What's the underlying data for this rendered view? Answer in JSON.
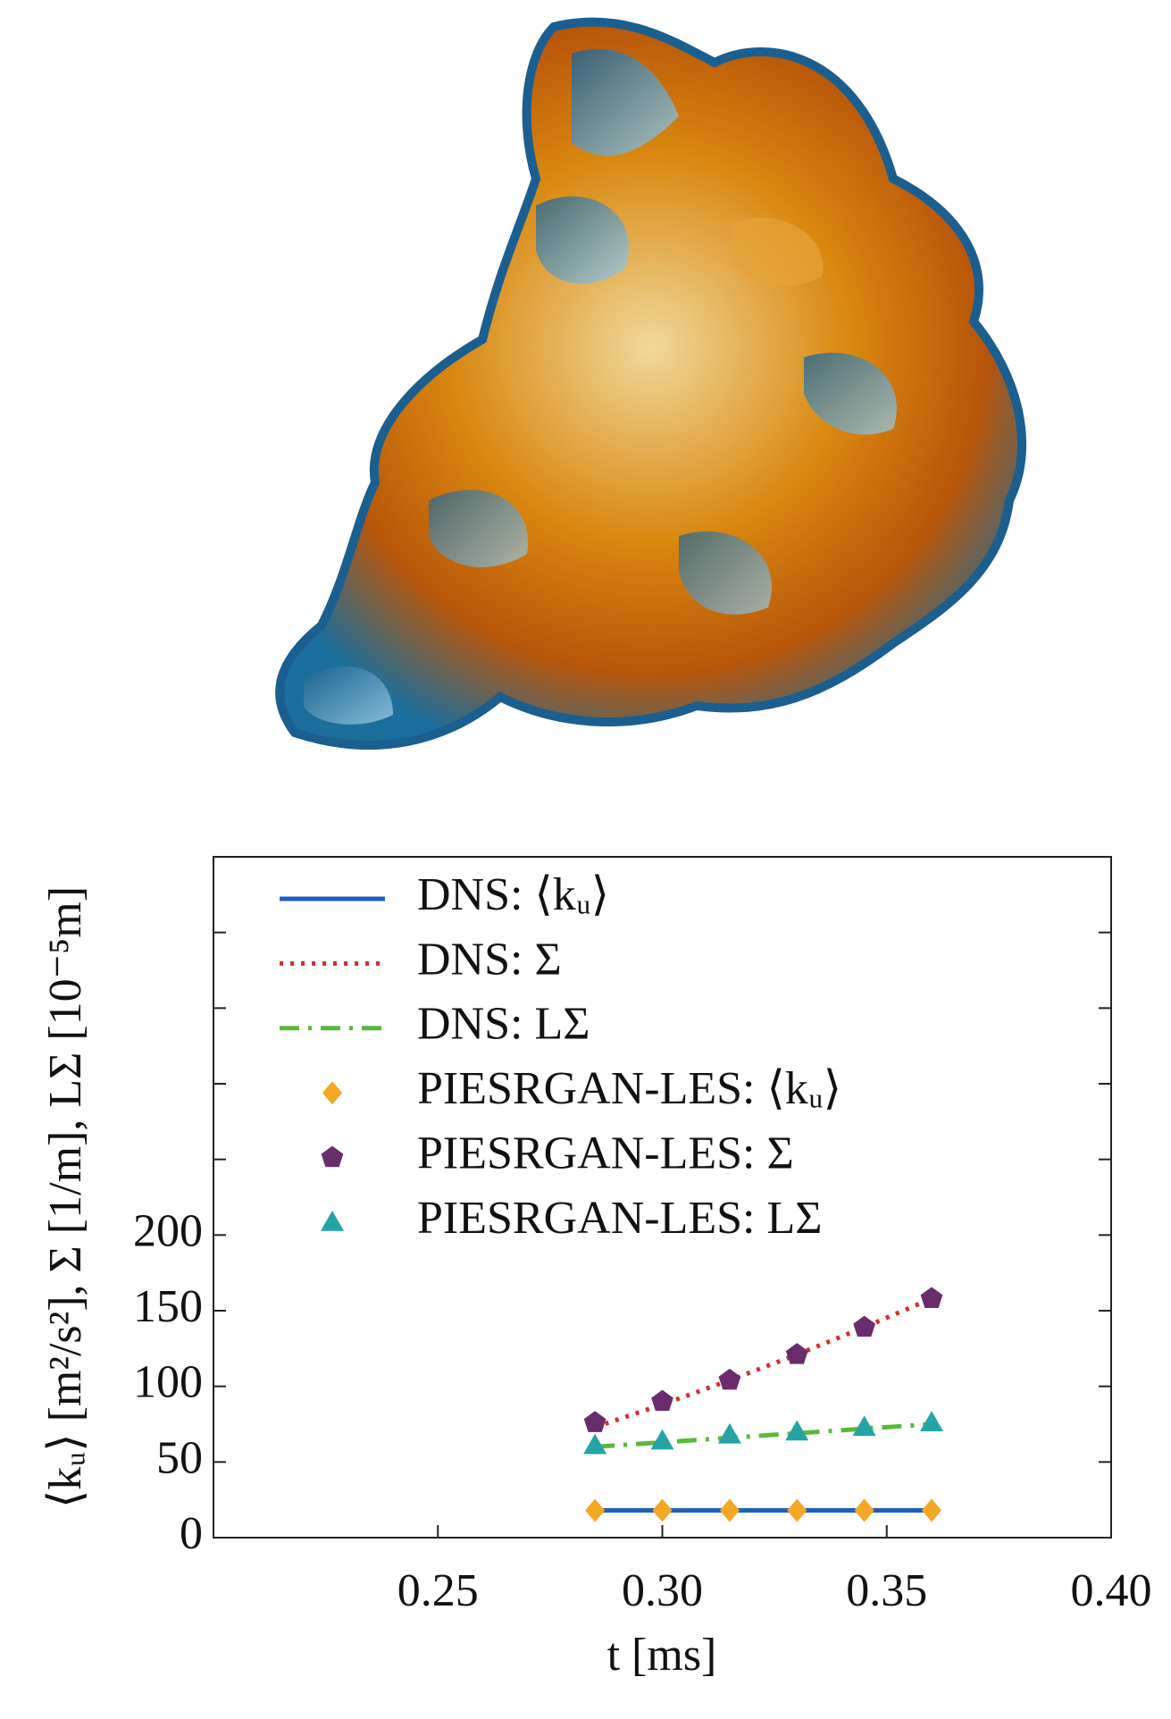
{
  "chart_data": {
    "type": "line",
    "x_label": "t [ms]",
    "y_label": "⟨kᵤ⟩ [m²/s²], Σ [1/m], LΣ [10⁻⁵m]",
    "x": [
      0.285,
      0.3,
      0.315,
      0.33,
      0.345,
      0.36
    ],
    "xlim": [
      0.2,
      0.4
    ],
    "xticks": [
      0.25,
      {
        "value": 0.3,
        "label": "0.30"
      },
      0.35,
      {
        "value": 0.4,
        "label": "0.40"
      }
    ],
    "ylim": [
      0,
      450
    ],
    "yticks": [
      0,
      50,
      100,
      150,
      200,
      {
        "value": 250,
        "label": null
      },
      {
        "value": 300,
        "label": null
      },
      {
        "value": 350,
        "label": null
      },
      {
        "value": 400,
        "label": null
      }
    ],
    "legend": "upper-left",
    "series": [
      {
        "name": "DNS: ⟨kᵤ⟩",
        "color": "#1f5fbf",
        "style": "solid",
        "values": [
          18,
          18,
          18,
          18,
          18,
          18
        ]
      },
      {
        "name": "DNS: Σ",
        "color": "#d62d2d",
        "style": "dotted",
        "values": [
          73,
          88,
          104,
          121,
          139,
          158
        ]
      },
      {
        "name": "DNS: LΣ",
        "color": "#5cb83c",
        "style": "dashdot",
        "values": [
          60,
          63,
          66,
          69,
          72,
          75
        ]
      },
      {
        "name": "PIESRGAN-LES: ⟨kᵤ⟩",
        "color": "#f5a623",
        "marker": "diamond",
        "values": [
          18,
          18,
          18,
          18,
          18,
          18
        ]
      },
      {
        "name": "PIESRGAN-LES: Σ",
        "color": "#6b2c6e",
        "marker": "pentagon",
        "values": [
          76,
          90,
          104,
          121,
          139,
          158
        ]
      },
      {
        "name": "PIESRGAN-LES: LΣ",
        "color": "#26a3a6",
        "marker": "triangle",
        "values": [
          61,
          64,
          68,
          70,
          73,
          76
        ]
      }
    ]
  }
}
